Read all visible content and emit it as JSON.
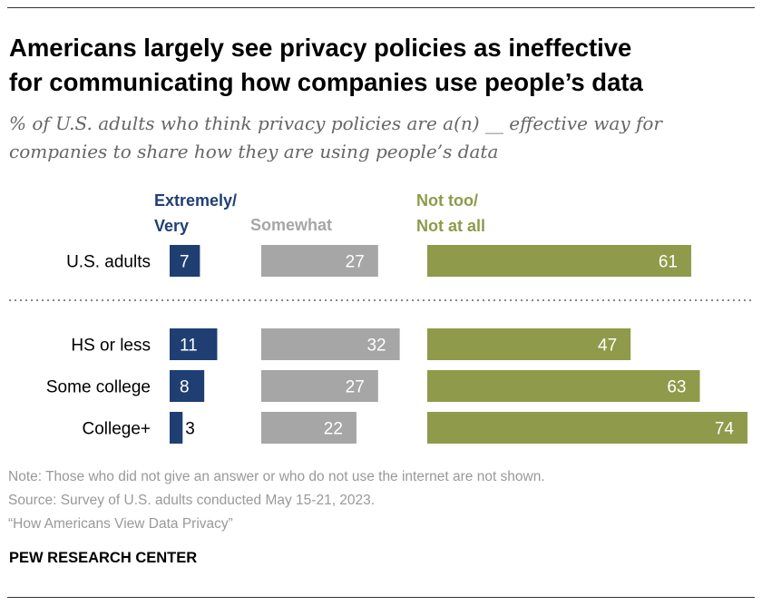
{
  "title_lines": [
    "Americans largely see privacy policies as ineffective",
    "for communicating how companies use people’s data"
  ],
  "subtitle_lines": [
    "% of U.S. adults who think privacy policies are a(n) __ effective way for",
    "companies to share how they are using people’s data"
  ],
  "notes": [
    "Note: Those who did not give an answer or who do not use the internet are not shown.",
    "Source: Survey of U.S. adults conducted May 15-21, 2023.",
    "“How Americans View Data Privacy”"
  ],
  "brand": "PEW RESEARCH CENTER",
  "colors": {
    "extremely_very": "#1f3f73",
    "somewhat": "#a6a6a6",
    "not_too": "#8f9a4a",
    "label_white": "#ffffff",
    "label_dark": "#000000"
  },
  "chart_data": {
    "type": "bar",
    "orientation": "horizontal",
    "stacked": false,
    "title": "Americans largely see privacy policies as ineffective for communicating how companies use people’s data",
    "categories": [
      "U.S. adults",
      "HS or less",
      "Some college",
      "College+"
    ],
    "series": [
      {
        "name": "Extremely/ Very",
        "label_lines": [
          "Extremely/",
          "Very"
        ],
        "values": [
          7,
          11,
          8,
          3
        ]
      },
      {
        "name": "Somewhat",
        "label_lines": [
          "Somewhat"
        ],
        "values": [
          27,
          32,
          27,
          22
        ]
      },
      {
        "name": "Not too/ Not at all",
        "label_lines": [
          "Not too/",
          "Not at all"
        ],
        "values": [
          61,
          47,
          63,
          74
        ]
      }
    ],
    "value_unit": "%",
    "grid": false,
    "legend": "column headers above bars",
    "divider_after_category": "U.S. adults"
  }
}
